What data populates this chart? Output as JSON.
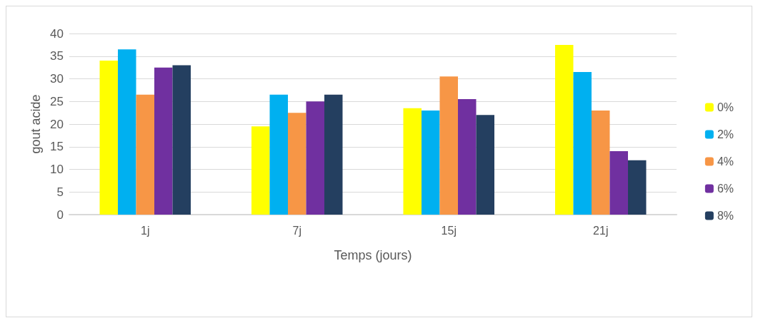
{
  "chart_data": {
    "type": "bar",
    "ylabel": "gout acide",
    "xlabel": "Temps (jours)",
    "categories": [
      "1j",
      "7j",
      "15j",
      "21j"
    ],
    "series": [
      {
        "name": "0%",
        "color": "#ffff00",
        "values": [
          34,
          19.5,
          23.5,
          37.5
        ]
      },
      {
        "name": "2%",
        "color": "#00b0f0",
        "values": [
          36.5,
          26.5,
          23,
          31.5
        ]
      },
      {
        "name": "4%",
        "color": "#f79646",
        "values": [
          26.5,
          22.5,
          30.5,
          23
        ]
      },
      {
        "name": "6%",
        "color": "#7030a0",
        "values": [
          32.5,
          25,
          25.5,
          14
        ]
      },
      {
        "name": "8%",
        "color": "#243f60",
        "values": [
          33,
          26.5,
          22,
          12
        ]
      }
    ],
    "ylim": [
      0,
      40
    ],
    "yticks": [
      0,
      5,
      10,
      15,
      20,
      25,
      30,
      35,
      40
    ],
    "grid": "y",
    "legend": "right"
  }
}
